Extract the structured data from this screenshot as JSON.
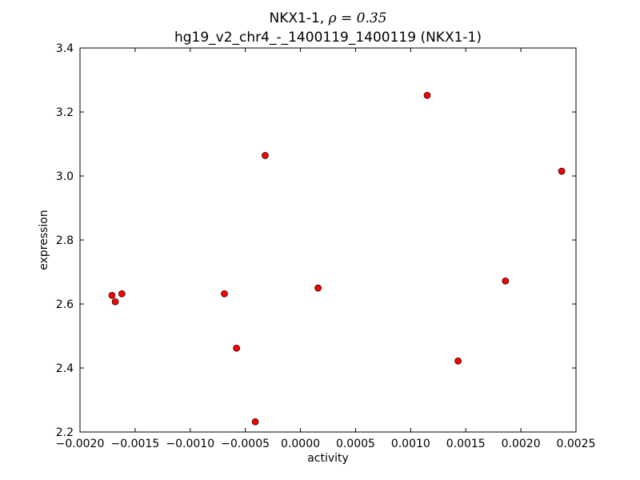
{
  "chart_data": {
    "type": "scatter",
    "title_line1": "NKX1-1, ",
    "title_rho": "ρ = 0.35",
    "title_line2": "hg19_v2_chr4_-_1400119_1400119 (NKX1-1)",
    "xlabel": "activity",
    "ylabel": "expression",
    "xlim": [
      -0.002,
      0.0025
    ],
    "ylim": [
      2.2,
      3.4
    ],
    "x_ticks": [
      -0.002,
      -0.0015,
      -0.001,
      -0.0005,
      0.0,
      0.0005,
      0.001,
      0.0015,
      0.002,
      0.0025
    ],
    "x_tick_labels": [
      "−0.0020",
      "−0.0015",
      "−0.0010",
      "−0.0005",
      "0.0000",
      "0.0005",
      "0.0010",
      "0.0015",
      "0.0020",
      "0.0025"
    ],
    "y_ticks": [
      2.2,
      2.4,
      2.6,
      2.8,
      3.0,
      3.2,
      3.4
    ],
    "y_tick_labels": [
      "2.2",
      "2.4",
      "2.6",
      "2.8",
      "3.0",
      "3.2",
      "3.4"
    ],
    "grid": false,
    "marker_color": "#ff0000",
    "marker_edge_color": "#000000",
    "points": [
      {
        "x": -0.00171,
        "y": 2.627
      },
      {
        "x": -0.00168,
        "y": 2.607
      },
      {
        "x": -0.00162,
        "y": 2.632
      },
      {
        "x": -0.00069,
        "y": 2.632
      },
      {
        "x": -0.00058,
        "y": 2.462
      },
      {
        "x": -0.00041,
        "y": 2.232
      },
      {
        "x": -0.00032,
        "y": 3.064
      },
      {
        "x": 0.00016,
        "y": 2.65
      },
      {
        "x": 0.00115,
        "y": 3.252
      },
      {
        "x": 0.00143,
        "y": 2.422
      },
      {
        "x": 0.00186,
        "y": 2.672
      },
      {
        "x": 0.00237,
        "y": 3.015
      }
    ]
  }
}
